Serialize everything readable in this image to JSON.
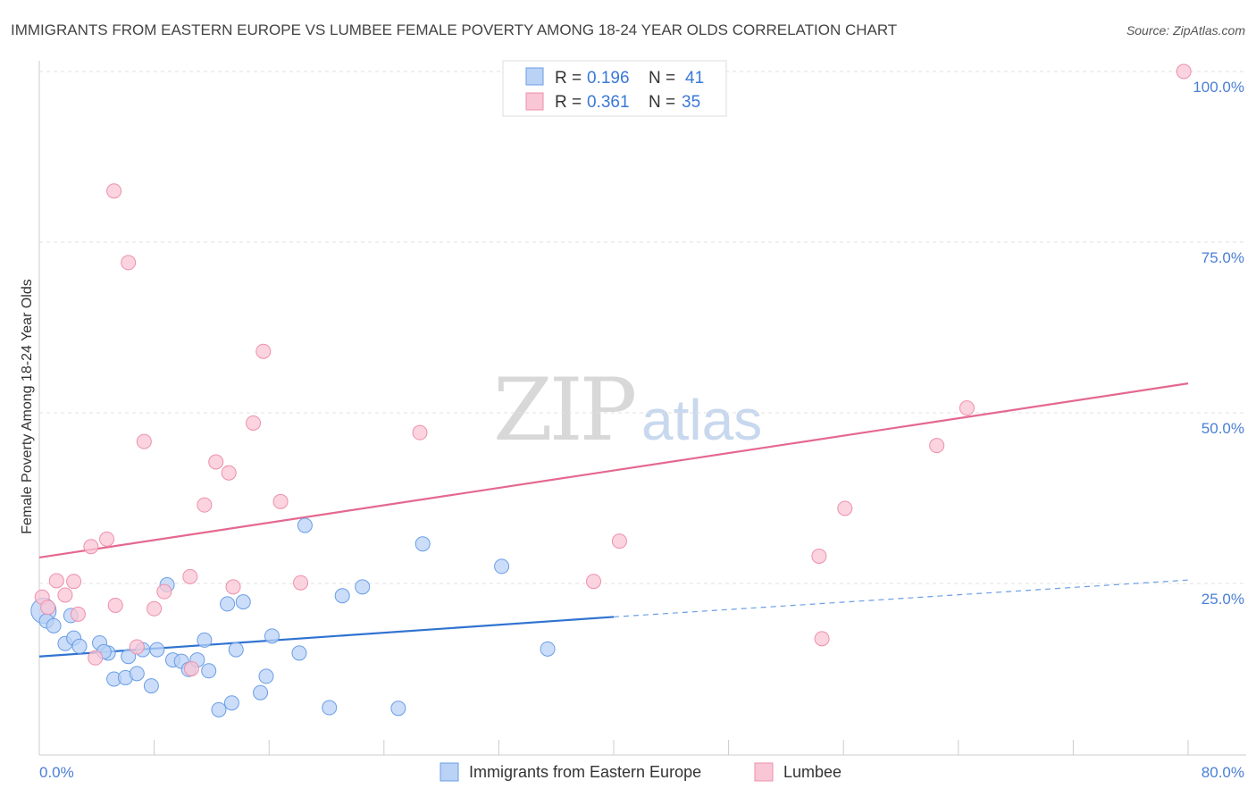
{
  "title": "IMMIGRANTS FROM EASTERN EUROPE VS LUMBEE FEMALE POVERTY AMONG 18-24 YEAR OLDS CORRELATION CHART",
  "source": "Source: ZipAtlas.com",
  "watermark": {
    "zip": "ZIP",
    "atlas": "atlas"
  },
  "legend": {
    "r_label": "R =",
    "n_label": "N =",
    "entries": [
      {
        "r": "0.196",
        "n": "41"
      },
      {
        "r": "0.361",
        "n": "35"
      }
    ]
  },
  "chart_data": {
    "type": "scatter",
    "title": "IMMIGRANTS FROM EASTERN EUROPE VS LUMBEE FEMALE POVERTY AMONG 18-24 YEAR OLDS CORRELATION CHART",
    "xlabel": "",
    "ylabel": "Female Poverty Among 18-24 Year Olds",
    "xlim": [
      0,
      80
    ],
    "ylim": [
      0,
      100
    ],
    "x_tick_labels": [
      "0.0%",
      "80.0%"
    ],
    "y_tick_labels": [
      "100.0%",
      "75.0%",
      "50.0%",
      "25.0%"
    ],
    "y_ticks": [
      100,
      75,
      50,
      25
    ],
    "grid": true,
    "legend_placement": "top-center",
    "colors": {
      "Immigrants from Eastern Europe": "#6a9ee6",
      "Lumbee": "#ee8fac"
    },
    "series": [
      {
        "name": "Immigrants from Eastern Europe",
        "color": "#6a9ee6",
        "fill": "#b9d2f5",
        "trend": {
          "x": [
            0,
            40
          ],
          "y": [
            14.3,
            20.1
          ],
          "extended_to": [
            80,
            25.5
          ]
        },
        "points": [
          [
            0.3,
            21.0
          ],
          [
            0.5,
            19.5
          ],
          [
            1.0,
            18.8
          ],
          [
            2.2,
            20.3
          ],
          [
            1.8,
            16.2
          ],
          [
            2.4,
            17.0
          ],
          [
            2.8,
            15.8
          ],
          [
            4.2,
            16.3
          ],
          [
            4.8,
            14.8
          ],
          [
            5.2,
            11.0
          ],
          [
            6.0,
            11.2
          ],
          [
            6.2,
            14.3
          ],
          [
            6.8,
            11.8
          ],
          [
            7.2,
            15.3
          ],
          [
            7.8,
            10.0
          ],
          [
            8.2,
            15.3
          ],
          [
            8.9,
            24.8
          ],
          [
            9.3,
            13.8
          ],
          [
            9.9,
            13.6
          ],
          [
            10.4,
            12.4
          ],
          [
            11.0,
            13.8
          ],
          [
            11.5,
            16.7
          ],
          [
            11.8,
            12.2
          ],
          [
            12.5,
            6.5
          ],
          [
            13.1,
            22.0
          ],
          [
            13.4,
            7.5
          ],
          [
            13.7,
            15.3
          ],
          [
            14.2,
            22.3
          ],
          [
            15.4,
            9.0
          ],
          [
            15.8,
            11.4
          ],
          [
            16.2,
            17.3
          ],
          [
            18.1,
            14.8
          ],
          [
            18.5,
            33.5
          ],
          [
            20.2,
            6.8
          ],
          [
            21.1,
            23.2
          ],
          [
            22.5,
            24.5
          ],
          [
            25.0,
            6.7
          ],
          [
            26.7,
            30.8
          ],
          [
            32.2,
            27.5
          ],
          [
            35.4,
            15.4
          ],
          [
            4.5,
            15.0
          ]
        ]
      },
      {
        "name": "Lumbee",
        "color": "#ee8fac",
        "fill": "#f9c6d6",
        "trend": {
          "x": [
            0,
            80
          ],
          "y": [
            28.8,
            54.3
          ]
        },
        "points": [
          [
            0.2,
            23.0
          ],
          [
            0.6,
            21.5
          ],
          [
            1.2,
            25.4
          ],
          [
            1.8,
            23.3
          ],
          [
            2.4,
            25.3
          ],
          [
            2.7,
            20.5
          ],
          [
            3.6,
            30.4
          ],
          [
            3.9,
            14.1
          ],
          [
            4.7,
            31.5
          ],
          [
            5.2,
            82.5
          ],
          [
            5.3,
            21.8
          ],
          [
            6.2,
            72.0
          ],
          [
            6.8,
            15.7
          ],
          [
            7.3,
            45.8
          ],
          [
            8.0,
            21.3
          ],
          [
            8.7,
            23.8
          ],
          [
            10.5,
            26.0
          ],
          [
            10.6,
            12.5
          ],
          [
            11.5,
            36.5
          ],
          [
            12.3,
            42.8
          ],
          [
            13.2,
            41.2
          ],
          [
            13.5,
            24.5
          ],
          [
            14.9,
            48.5
          ],
          [
            15.6,
            59.0
          ],
          [
            16.8,
            37.0
          ],
          [
            18.2,
            25.1
          ],
          [
            26.5,
            47.1
          ],
          [
            38.6,
            25.3
          ],
          [
            40.4,
            31.2
          ],
          [
            54.3,
            29.0
          ],
          [
            54.5,
            16.9
          ],
          [
            56.1,
            36.0
          ],
          [
            62.5,
            45.2
          ],
          [
            64.6,
            50.7
          ],
          [
            79.7,
            100.0
          ]
        ]
      }
    ]
  }
}
